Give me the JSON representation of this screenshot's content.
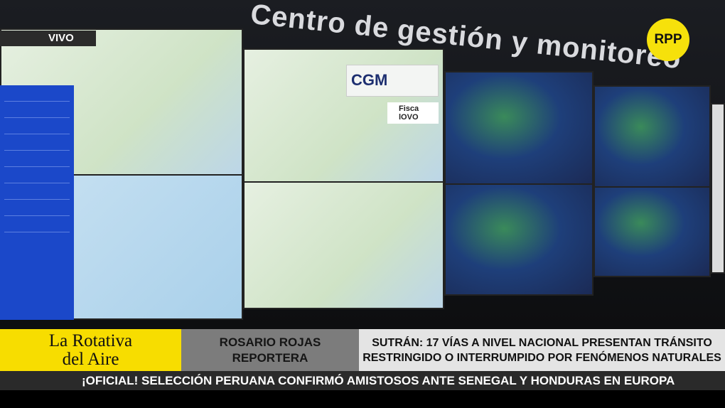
{
  "broadcast": {
    "live_label": "VIVO",
    "channel_logo": "RPP"
  },
  "scene": {
    "wall_sign": "Centro de gestión y monitoreo",
    "screen_logo": "CGM",
    "screen_sponsor": "Fisca lOVO"
  },
  "lower_third": {
    "program_line1": "La Rotativa",
    "program_line2": "del Aire",
    "reporter_name": "ROSARIO ROJAS",
    "reporter_role": "REPORTERA",
    "headline_line1": "SUTRÁN: 17 VÍAS A NIVEL NACIONAL PRESENTAN TRÁNSITO",
    "headline_line2": "RESTRINGIDO O INTERRUMPIDO POR FENÓMENOS NATURALES"
  },
  "ticker": {
    "text": "¡OFICIAL! SELECCIÓN PERUANA CONFIRMÓ AMISTOSOS ANTE SENEGAL Y HONDURAS EN EUROPA"
  },
  "colors": {
    "brand_yellow": "#f7dd00",
    "reporter_gray": "#7c7c7c",
    "headline_bg": "#e4e4e4",
    "ticker_bg": "#2a2a2a"
  }
}
